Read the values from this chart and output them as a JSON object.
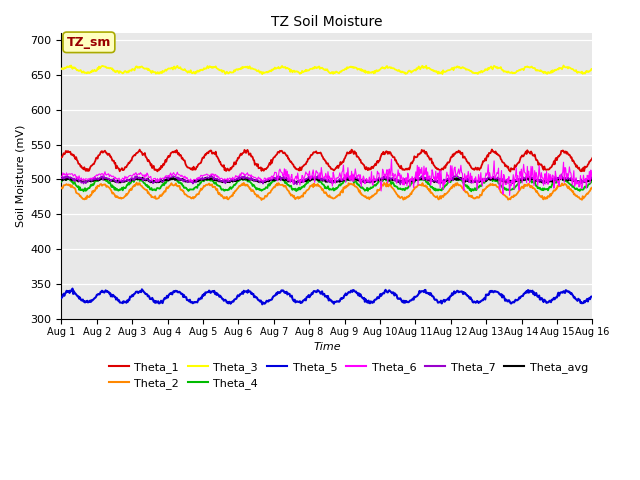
{
  "title": "TZ Soil Moisture",
  "xlabel": "Time",
  "ylabel": "Soil Moisture (mV)",
  "ylim": [
    300,
    710
  ],
  "yticks": [
    300,
    350,
    400,
    450,
    500,
    550,
    600,
    650,
    700
  ],
  "xtick_labels": [
    "Aug 1",
    "Aug 2",
    "Aug 3",
    "Aug 4",
    "Aug 5",
    "Aug 6",
    "Aug 7",
    "Aug 8",
    "Aug 9",
    "Aug 10",
    "Aug 11",
    "Aug 12",
    "Aug 13",
    "Aug 14",
    "Aug 15",
    "Aug 16"
  ],
  "bg_color": "#e8e8e8",
  "series": {
    "Theta_1": {
      "color": "#dd0000",
      "base": 527,
      "amp": 13,
      "freq": 1.0,
      "phase": 0.3,
      "noise": 1.5
    },
    "Theta_2": {
      "color": "#ff8800",
      "base": 483,
      "amp": 10,
      "freq": 1.0,
      "phase": 0.5,
      "noise": 1.2
    },
    "Theta_3": {
      "color": "#ffff00",
      "base": 657,
      "amp": 4,
      "freq": 1.0,
      "phase": 0.2,
      "noise": 1.0
    },
    "Theta_4": {
      "color": "#00bb00",
      "base": 493,
      "amp": 8,
      "freq": 1.0,
      "phase": 0.7,
      "noise": 1.2
    },
    "Theta_5": {
      "color": "#0000dd",
      "base": 332,
      "amp": 8,
      "freq": 1.0,
      "phase": 0.1,
      "noise": 1.2
    },
    "Theta_6": {
      "color": "#ff00ff",
      "base": 504,
      "amp": 4,
      "freq": 1.0,
      "phase": 0.4
    },
    "Theta_7": {
      "color": "#9900cc",
      "base": 500,
      "amp": 3,
      "freq": 1.0,
      "phase": 0.6,
      "noise": 1.5
    },
    "Theta_avg": {
      "color": "#000000",
      "base": 499,
      "amp": 2,
      "freq": 1.0,
      "phase": 0.5,
      "noise": 0.8
    }
  },
  "legend_label": "TZ_sm",
  "legend_box_facecolor": "#ffffc0",
  "legend_box_edgecolor": "#aaaa00",
  "legend_text_color": "#990000"
}
